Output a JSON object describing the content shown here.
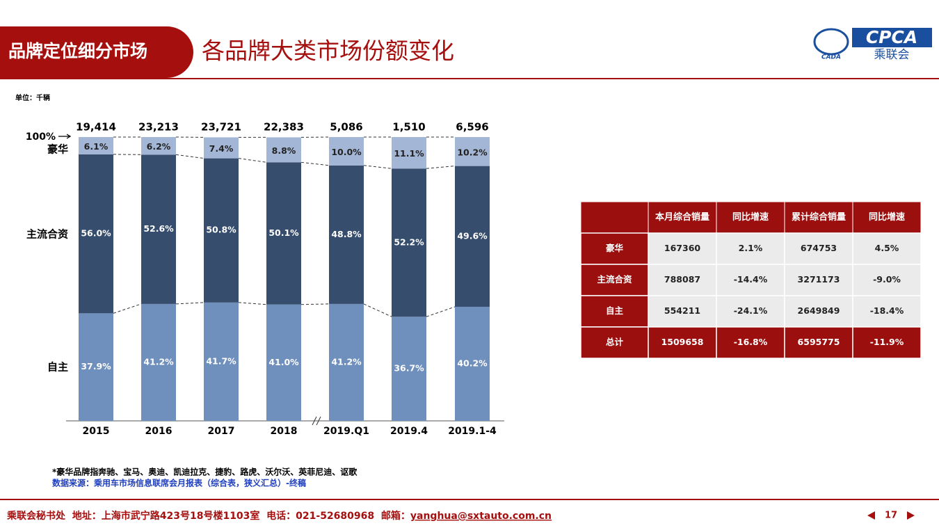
{
  "header": {
    "tab": "品牌定位细分市场",
    "title": "各品牌大类市场份额变化",
    "logo_main": "CPCA",
    "logo_sub": "乘联会",
    "logo_left": "CADA"
  },
  "chart_data": {
    "type": "stacked_bar",
    "unit": "单位：千辆",
    "categories": [
      "2015",
      "2016",
      "2017",
      "2018",
      "2019.Q1",
      "2019.4",
      "2019.1-4"
    ],
    "series": [
      {
        "name": "自主",
        "color": "#6f8fbd",
        "values": [
          37.9,
          41.2,
          41.7,
          41.0,
          41.2,
          36.7,
          40.2
        ],
        "value_labels": [
          "37.9%",
          "41.2%",
          "41.7%",
          "41.0%",
          "41.2%",
          "36.7%",
          "40.2%"
        ]
      },
      {
        "name": "主流合资",
        "color": "#364d6d",
        "values": [
          56.0,
          52.6,
          50.8,
          50.1,
          48.8,
          52.2,
          49.6
        ],
        "value_labels": [
          "56.0%",
          "52.6%",
          "50.8%",
          "50.1%",
          "48.8%",
          "52.2%",
          "49.6%"
        ]
      },
      {
        "name": "豪华",
        "color": "#a4b6d6",
        "values": [
          6.1,
          6.2,
          7.4,
          8.8,
          10.0,
          11.1,
          10.2
        ],
        "value_labels": [
          "6.1%",
          "6.2%",
          "7.4%",
          "8.8%",
          "10.0%",
          "11.1%",
          "10.2%"
        ]
      }
    ],
    "totals": {
      "values": [
        19414,
        23213,
        23721,
        22383,
        5086,
        1510,
        6596
      ],
      "value_labels": [
        "19,414",
        "23,213",
        "23,721",
        "22,383",
        "5,086",
        "1,510",
        "6,596"
      ]
    },
    "ylim": [
      0,
      100
    ],
    "yticks": [
      {
        "value": 100,
        "label": "100%"
      }
    ],
    "notes": [
      "*豪华品牌指奔驰、宝马、奥迪、凯迪拉克、捷豹、路虎、沃尔沃、英菲尼迪、讴歌",
      "数据来源：乘用车市场信息联席会月报表（综合表，狭义汇总）-终稿"
    ]
  },
  "table": {
    "header": [
      "本月综合销量",
      "同比增速",
      "累计综合销量",
      "同比增速"
    ],
    "rows": [
      [
        "豪华",
        "167360",
        "2.1%",
        "674753",
        "4.5%"
      ],
      [
        "主流合资",
        "788087",
        "-14.4%",
        "3271173",
        "-9.0%"
      ],
      [
        "自主",
        "554211",
        "-24.1%",
        "2649849",
        "-18.4%"
      ],
      [
        "总计",
        "1509658",
        "-16.8%",
        "6595775",
        "-11.9%"
      ]
    ]
  },
  "footer": {
    "text": "乘联会秘书处  地址：上海市武宁路423号18号楼1103室  电话：021-52680968  邮箱：",
    "email": "yanghua@sxtauto.com.cn",
    "page": "17"
  }
}
